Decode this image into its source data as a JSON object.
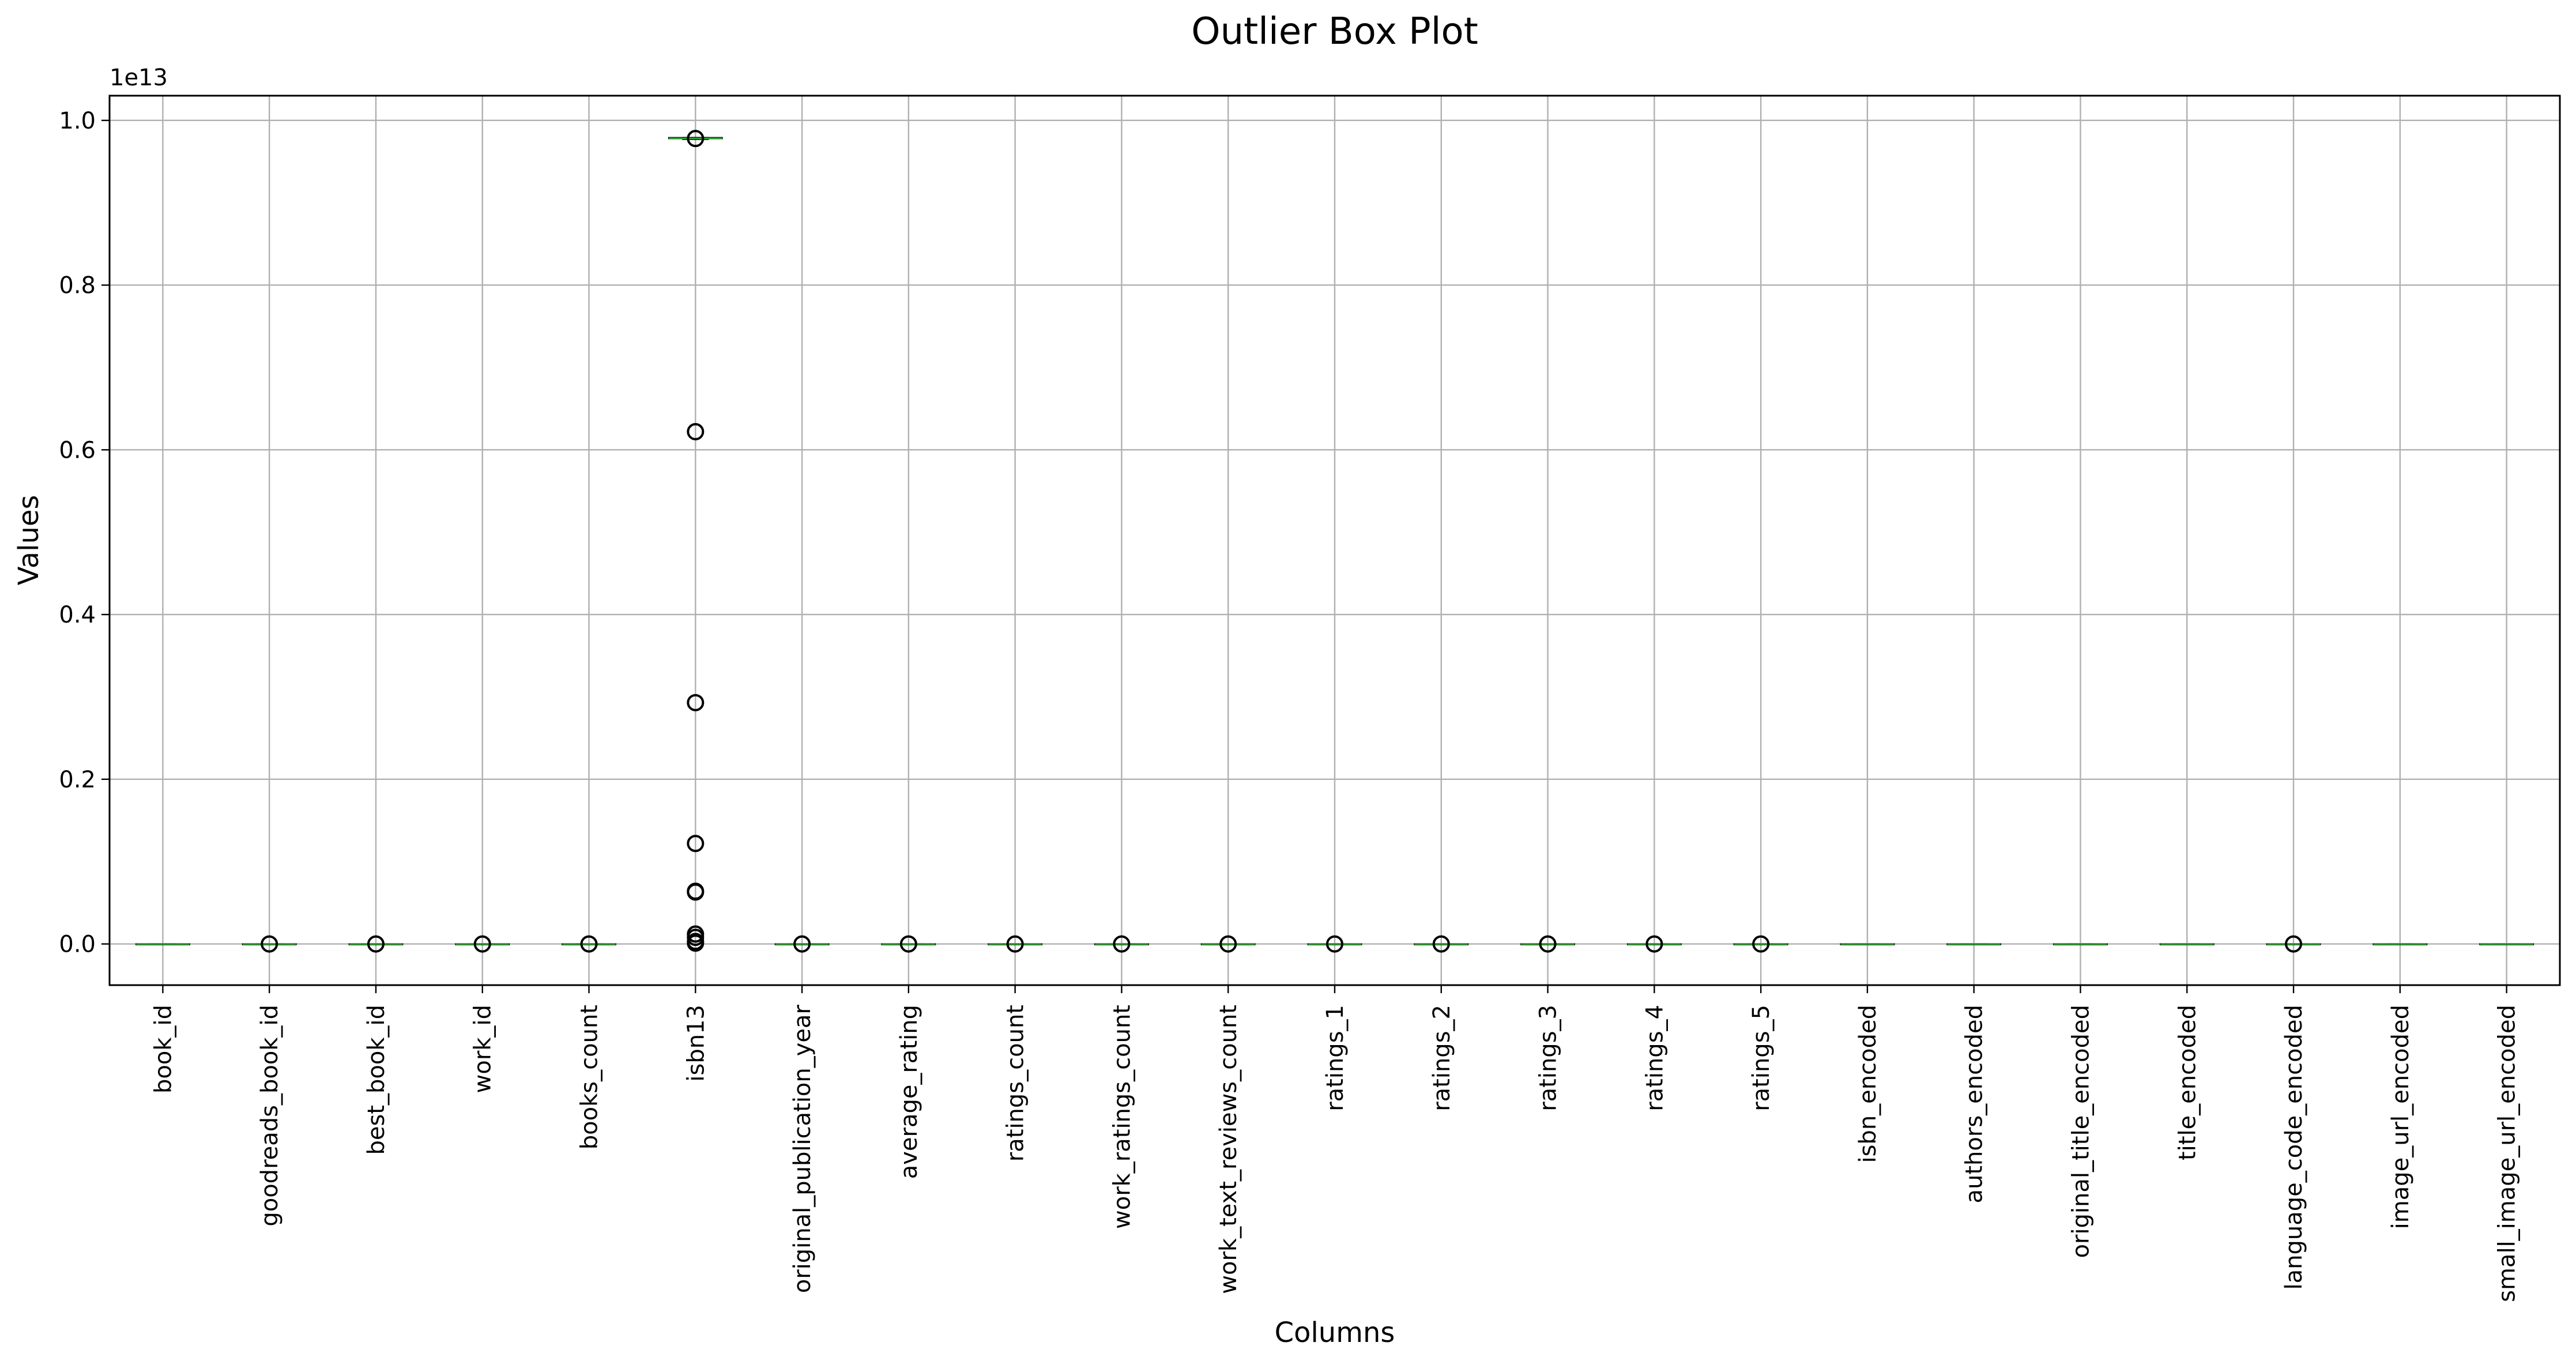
{
  "chart_data": {
    "type": "box",
    "title": "Outlier Box Plot",
    "xlabel": "Columns",
    "ylabel": "Values",
    "y_offset_label": "1e13",
    "y_scale": 10000000000000.0,
    "ylim": [
      -0.05,
      1.03
    ],
    "y_ticks": [
      0.0,
      0.2,
      0.4,
      0.6,
      0.8,
      1.0
    ],
    "y_tick_labels": [
      "0.0",
      "0.2",
      "0.4",
      "0.6",
      "0.8",
      "1.0"
    ],
    "grid": true,
    "colors": {
      "median": "#2ca02c",
      "box": "#000000",
      "grid": "#b0b0b0",
      "flier": "#000000"
    },
    "categories": [
      "book_id",
      "goodreads_book_id",
      "best_book_id",
      "work_id",
      "books_count",
      "isbn13",
      "original_publication_year",
      "average_rating",
      "ratings_count",
      "work_ratings_count",
      "work_text_reviews_count",
      "ratings_1",
      "ratings_2",
      "ratings_3",
      "ratings_4",
      "ratings_5",
      "isbn_encoded",
      "authors_encoded",
      "original_title_encoded",
      "title_encoded",
      "language_code_encoded",
      "image_url_encoded",
      "small_image_url_encoded"
    ],
    "boxes": [
      {
        "min": 0,
        "q1": 0,
        "median": 0,
        "q3": 0,
        "max": 0,
        "fliers": []
      },
      {
        "min": 0,
        "q1": 0,
        "median": 0,
        "q3": 0,
        "max": 0,
        "fliers": [
          0
        ]
      },
      {
        "min": 0,
        "q1": 0,
        "median": 0,
        "q3": 0,
        "max": 0,
        "fliers": [
          0
        ]
      },
      {
        "min": 0,
        "q1": 0,
        "median": 0,
        "q3": 0,
        "max": 0,
        "fliers": [
          0
        ]
      },
      {
        "min": 0,
        "q1": 0,
        "median": 0,
        "q3": 0,
        "max": 0,
        "fliers": [
          0
        ]
      },
      {
        "min": 0.977,
        "q1": 0.978,
        "median": 0.978,
        "q3": 0.979,
        "max": 0.979,
        "fliers": [
          0.978,
          0.622,
          0.293,
          0.122,
          0.064,
          0.063,
          0.012,
          0.008,
          0.003,
          0.001
        ]
      },
      {
        "min": 0,
        "q1": 0,
        "median": 0,
        "q3": 0,
        "max": 0,
        "fliers": [
          0
        ]
      },
      {
        "min": 0,
        "q1": 0,
        "median": 0,
        "q3": 0,
        "max": 0,
        "fliers": [
          0
        ]
      },
      {
        "min": 0,
        "q1": 0,
        "median": 0,
        "q3": 0,
        "max": 0,
        "fliers": [
          0
        ]
      },
      {
        "min": 0,
        "q1": 0,
        "median": 0,
        "q3": 0,
        "max": 0,
        "fliers": [
          0
        ]
      },
      {
        "min": 0,
        "q1": 0,
        "median": 0,
        "q3": 0,
        "max": 0,
        "fliers": [
          0
        ]
      },
      {
        "min": 0,
        "q1": 0,
        "median": 0,
        "q3": 0,
        "max": 0,
        "fliers": [
          0
        ]
      },
      {
        "min": 0,
        "q1": 0,
        "median": 0,
        "q3": 0,
        "max": 0,
        "fliers": [
          0
        ]
      },
      {
        "min": 0,
        "q1": 0,
        "median": 0,
        "q3": 0,
        "max": 0,
        "fliers": [
          0
        ]
      },
      {
        "min": 0,
        "q1": 0,
        "median": 0,
        "q3": 0,
        "max": 0,
        "fliers": [
          0
        ]
      },
      {
        "min": 0,
        "q1": 0,
        "median": 0,
        "q3": 0,
        "max": 0,
        "fliers": [
          0
        ]
      },
      {
        "min": 0,
        "q1": 0,
        "median": 0,
        "q3": 0,
        "max": 0,
        "fliers": []
      },
      {
        "min": 0,
        "q1": 0,
        "median": 0,
        "q3": 0,
        "max": 0,
        "fliers": []
      },
      {
        "min": 0,
        "q1": 0,
        "median": 0,
        "q3": 0,
        "max": 0,
        "fliers": []
      },
      {
        "min": 0,
        "q1": 0,
        "median": 0,
        "q3": 0,
        "max": 0,
        "fliers": []
      },
      {
        "min": 0,
        "q1": 0,
        "median": 0,
        "q3": 0,
        "max": 0,
        "fliers": [
          0
        ]
      },
      {
        "min": 0,
        "q1": 0,
        "median": 0,
        "q3": 0,
        "max": 0,
        "fliers": []
      },
      {
        "min": 0,
        "q1": 0,
        "median": 0,
        "q3": 0,
        "max": 0,
        "fliers": []
      }
    ]
  }
}
